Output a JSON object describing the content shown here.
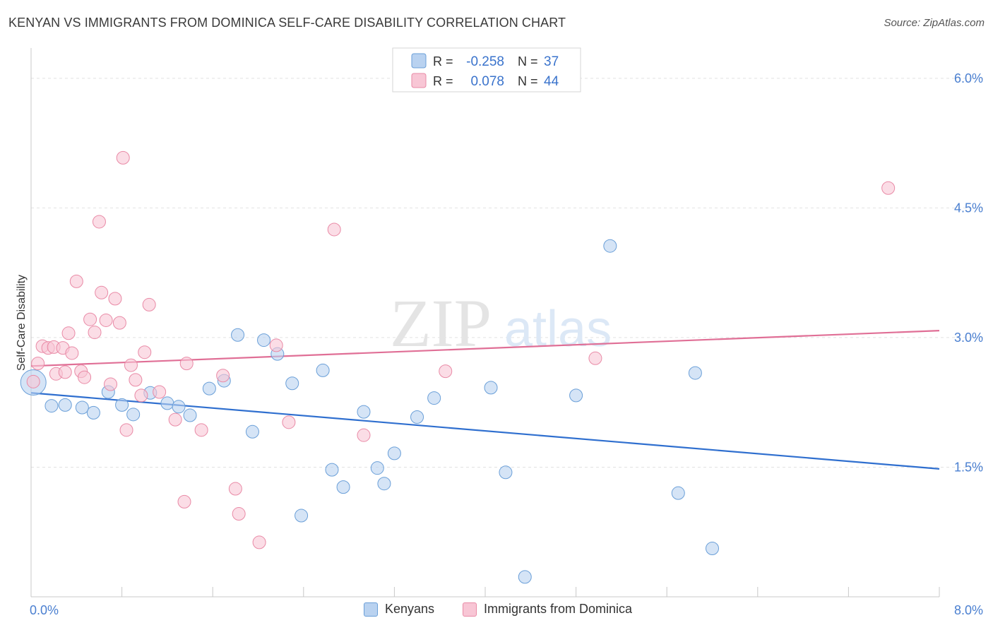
{
  "header": {
    "title": "KENYAN VS IMMIGRANTS FROM DOMINICA SELF-CARE DISABILITY CORRELATION CHART",
    "source": "Source: ZipAtlas.com"
  },
  "watermark": {
    "zip": "ZIP",
    "atlas": "atlas"
  },
  "chart_data": {
    "type": "scatter",
    "title": "KENYAN VS IMMIGRANTS FROM DOMINICA SELF-CARE DISABILITY CORRELATION CHART",
    "xlabel": "",
    "ylabel": "Self-Care Disability",
    "xlim": [
      0,
      8
    ],
    "ylim": [
      0,
      6.35
    ],
    "x_tick_labels": [
      "0.0%",
      "8.0%"
    ],
    "y_ticks": [
      1.5,
      3.0,
      4.5,
      6.0
    ],
    "y_tick_labels": [
      "1.5%",
      "3.0%",
      "4.5%",
      "6.0%"
    ],
    "grid": true,
    "legend_position": "top-center",
    "stats": [
      {
        "r_label": "R =",
        "r_value": "-0.258",
        "n_label": "N =",
        "n_value": "37"
      },
      {
        "r_label": "R =",
        "r_value": "0.078",
        "n_label": "N =",
        "n_value": "44"
      }
    ],
    "series": [
      {
        "name": "Kenyans",
        "color": "#6a9fd8",
        "fill": "#b9d2f0",
        "trend_color": "#2f6fcf",
        "trend": {
          "x": [
            0,
            8
          ],
          "y": [
            2.36,
            1.48
          ]
        },
        "points": [
          {
            "x": 0.02,
            "y": 2.48,
            "big": true
          },
          {
            "x": 0.18,
            "y": 2.21
          },
          {
            "x": 0.3,
            "y": 2.22
          },
          {
            "x": 0.45,
            "y": 2.19
          },
          {
            "x": 0.55,
            "y": 2.13
          },
          {
            "x": 0.68,
            "y": 2.37
          },
          {
            "x": 0.8,
            "y": 2.22
          },
          {
            "x": 0.9,
            "y": 2.11
          },
          {
            "x": 1.05,
            "y": 2.36
          },
          {
            "x": 1.2,
            "y": 2.24
          },
          {
            "x": 1.3,
            "y": 2.2
          },
          {
            "x": 1.4,
            "y": 2.1
          },
          {
            "x": 1.57,
            "y": 2.41
          },
          {
            "x": 1.7,
            "y": 2.5
          },
          {
            "x": 1.82,
            "y": 3.03
          },
          {
            "x": 1.95,
            "y": 1.91
          },
          {
            "x": 2.05,
            "y": 2.97
          },
          {
            "x": 2.17,
            "y": 2.81
          },
          {
            "x": 2.3,
            "y": 2.47
          },
          {
            "x": 2.38,
            "y": 0.94
          },
          {
            "x": 2.57,
            "y": 2.62
          },
          {
            "x": 2.65,
            "y": 1.47
          },
          {
            "x": 2.75,
            "y": 1.27
          },
          {
            "x": 2.93,
            "y": 2.14
          },
          {
            "x": 3.05,
            "y": 1.49
          },
          {
            "x": 3.11,
            "y": 1.31
          },
          {
            "x": 3.2,
            "y": 1.66
          },
          {
            "x": 3.4,
            "y": 2.08
          },
          {
            "x": 3.55,
            "y": 2.3
          },
          {
            "x": 4.05,
            "y": 2.42
          },
          {
            "x": 4.18,
            "y": 1.44
          },
          {
            "x": 4.35,
            "y": 0.23
          },
          {
            "x": 4.8,
            "y": 2.33
          },
          {
            "x": 5.1,
            "y": 4.06
          },
          {
            "x": 5.7,
            "y": 1.2
          },
          {
            "x": 5.85,
            "y": 2.59
          },
          {
            "x": 6.0,
            "y": 0.56
          }
        ]
      },
      {
        "name": "Immigrants from Dominica",
        "color": "#e98aa6",
        "fill": "#f8c6d5",
        "trend_color": "#e06f96",
        "trend": {
          "x": [
            0,
            8
          ],
          "y": [
            2.67,
            3.08
          ]
        },
        "points": [
          {
            "x": 0.02,
            "y": 2.49
          },
          {
            "x": 0.06,
            "y": 2.7
          },
          {
            "x": 0.1,
            "y": 2.9
          },
          {
            "x": 0.15,
            "y": 2.88
          },
          {
            "x": 0.2,
            "y": 2.89
          },
          {
            "x": 0.22,
            "y": 2.58
          },
          {
            "x": 0.28,
            "y": 2.88
          },
          {
            "x": 0.3,
            "y": 2.6
          },
          {
            "x": 0.33,
            "y": 3.05
          },
          {
            "x": 0.36,
            "y": 2.82
          },
          {
            "x": 0.4,
            "y": 3.65
          },
          {
            "x": 0.44,
            "y": 2.61
          },
          {
            "x": 0.47,
            "y": 2.54
          },
          {
            "x": 0.52,
            "y": 3.21
          },
          {
            "x": 0.56,
            "y": 3.06
          },
          {
            "x": 0.6,
            "y": 4.34
          },
          {
            "x": 0.62,
            "y": 3.52
          },
          {
            "x": 0.66,
            "y": 3.2
          },
          {
            "x": 0.7,
            "y": 2.46
          },
          {
            "x": 0.74,
            "y": 3.45
          },
          {
            "x": 0.78,
            "y": 3.17
          },
          {
            "x": 0.81,
            "y": 5.08
          },
          {
            "x": 0.84,
            "y": 1.93
          },
          {
            "x": 0.88,
            "y": 2.68
          },
          {
            "x": 0.92,
            "y": 2.51
          },
          {
            "x": 0.97,
            "y": 2.33
          },
          {
            "x": 1.0,
            "y": 2.83
          },
          {
            "x": 1.04,
            "y": 3.38
          },
          {
            "x": 1.13,
            "y": 2.37
          },
          {
            "x": 1.27,
            "y": 2.05
          },
          {
            "x": 1.35,
            "y": 1.1
          },
          {
            "x": 1.37,
            "y": 2.7
          },
          {
            "x": 1.5,
            "y": 1.93
          },
          {
            "x": 1.69,
            "y": 2.56
          },
          {
            "x": 1.8,
            "y": 1.25
          },
          {
            "x": 1.83,
            "y": 0.96
          },
          {
            "x": 2.01,
            "y": 0.63
          },
          {
            "x": 2.16,
            "y": 2.91
          },
          {
            "x": 2.27,
            "y": 2.02
          },
          {
            "x": 2.67,
            "y": 4.25
          },
          {
            "x": 2.93,
            "y": 1.87
          },
          {
            "x": 3.65,
            "y": 2.61
          },
          {
            "x": 4.97,
            "y": 2.76
          },
          {
            "x": 7.55,
            "y": 4.73
          }
        ]
      }
    ]
  }
}
